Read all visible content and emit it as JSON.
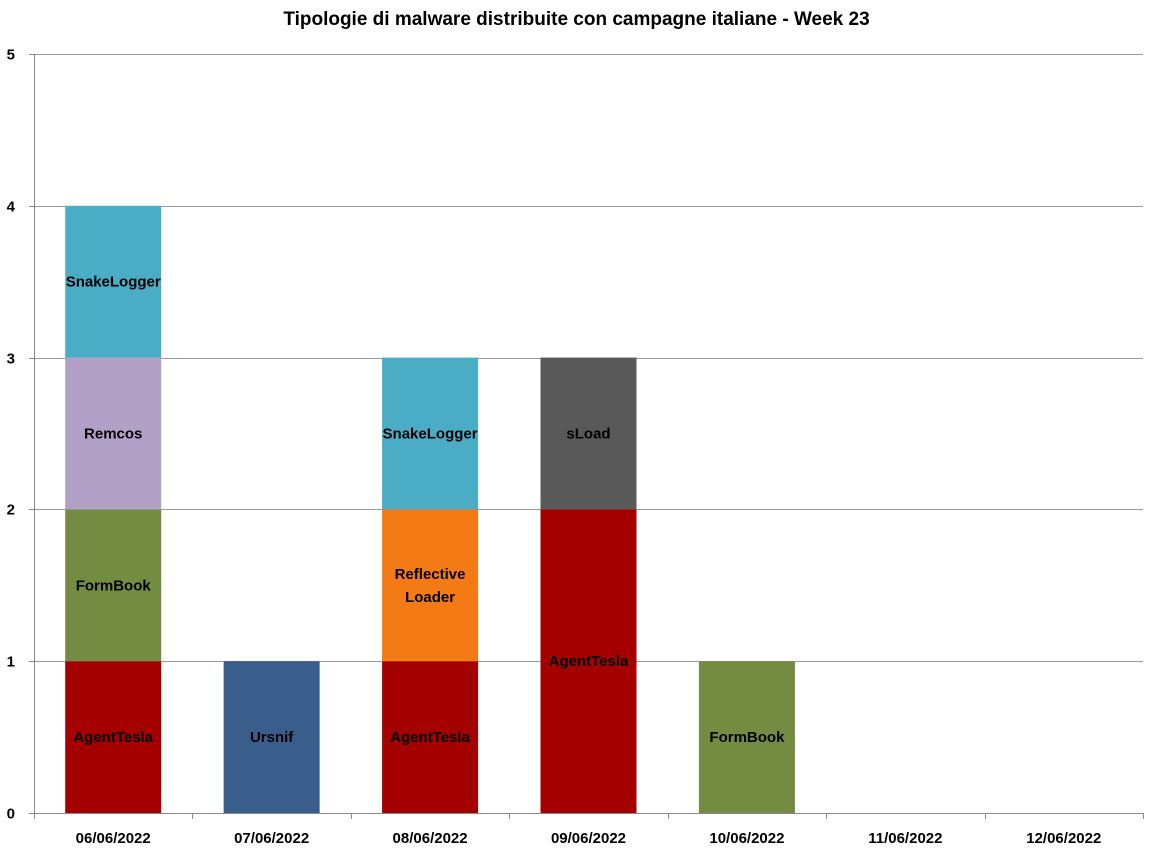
{
  "chart_data": {
    "type": "bar",
    "stacked": true,
    "title": "Tipologie  di malware distribuite con campagne italiane - Week 23",
    "xlabel": "",
    "ylabel": "",
    "ylim": [
      0,
      5
    ],
    "y_ticks": [
      "0",
      "1",
      "2",
      "3",
      "4",
      "5"
    ],
    "grid": true,
    "categories": [
      "06/06/2022",
      "07/06/2022",
      "08/06/2022",
      "09/06/2022",
      "10/06/2022",
      "11/06/2022",
      "12/06/2022"
    ],
    "stacks": [
      [
        {
          "label": "AgentTesla",
          "value": 1,
          "color": "#a50000"
        },
        {
          "label": "FormBook",
          "value": 1,
          "color": "#748b42"
        },
        {
          "label": "Remcos",
          "value": 1,
          "color": "#b2a1c7"
        },
        {
          "label": "SnakeLogger",
          "value": 1,
          "color": "#4bacc6"
        }
      ],
      [
        {
          "label": "Ursnif",
          "value": 1,
          "color": "#3a5e8c"
        }
      ],
      [
        {
          "label": "AgentTesla",
          "value": 1,
          "color": "#a50000"
        },
        {
          "label": "Reflective\nLoader",
          "value": 1,
          "color": "#f47a16"
        },
        {
          "label": "SnakeLogger",
          "value": 1,
          "color": "#4bacc6"
        }
      ],
      [
        {
          "label": "AgentTesla",
          "value": 2,
          "color": "#a50000"
        },
        {
          "label": "sLoad",
          "value": 1,
          "color": "#595959"
        }
      ],
      [
        {
          "label": "FormBook",
          "value": 1,
          "color": "#748b42"
        }
      ],
      [],
      []
    ]
  }
}
